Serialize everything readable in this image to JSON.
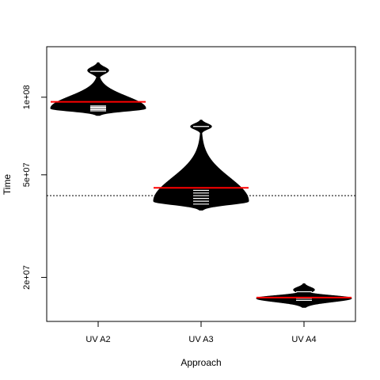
{
  "chart_data": {
    "type": "beanplot",
    "title": "",
    "xlabel": "Approach",
    "ylabel": "Time",
    "y_scale": "log",
    "ylim": [
      13500000,
      157000000
    ],
    "yticks": [
      {
        "value": 20000000,
        "label": "2e+07"
      },
      {
        "value": 50000000,
        "label": "5e+07"
      },
      {
        "value": 100000000,
        "label": "1e+08"
      }
    ],
    "categories": [
      "UV A2",
      "UV A3",
      "UV A4"
    ],
    "overall_mean": 41500000,
    "beans": [
      {
        "category": "UV A2",
        "mean": 96000000,
        "mode": 90500000,
        "min": 85000000,
        "max": 136000000,
        "outlier_cluster": 127000000,
        "observations": [
          88500000,
          89500000,
          90500000,
          91500000,
          92500000,
          126000000
        ]
      },
      {
        "category": "UV A3",
        "mean": 44500000,
        "mode": 39500000,
        "min": 36500000,
        "max": 81500000,
        "outlier_cluster": 77000000,
        "observations": [
          38500000,
          39500000,
          40500000,
          41500000,
          42500000,
          43500000,
          77000000
        ]
      },
      {
        "category": "UV A4",
        "mean": 16700000,
        "mode": 16600000,
        "min": 15300000,
        "max": 18900000,
        "outlier_cluster": 17900000,
        "observations": [
          16300000,
          16600000,
          17600000
        ]
      }
    ],
    "colors": {
      "bean_fill": "#000000",
      "bean_line": "#ffffff",
      "mean_line": "#ff0000",
      "overall_line": "#000000"
    },
    "grid": false,
    "legend": "none"
  }
}
